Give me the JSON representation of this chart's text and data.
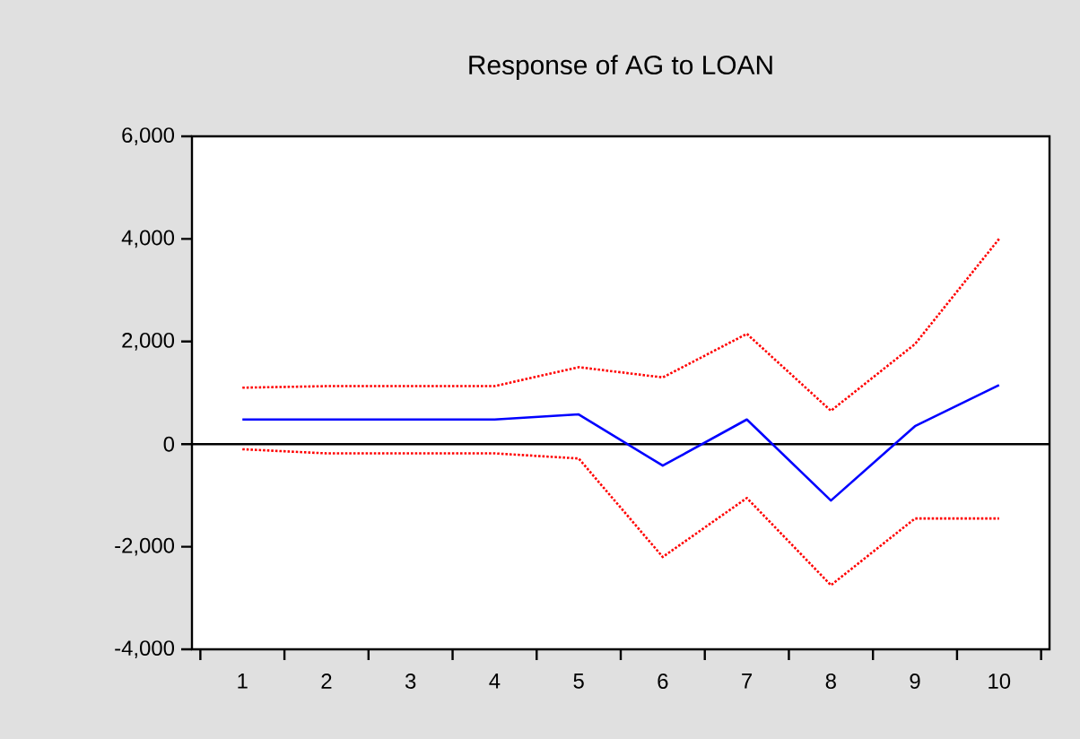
{
  "chart_data": {
    "type": "line",
    "title": "Response of AG to LOAN",
    "categories": [
      "1",
      "2",
      "3",
      "4",
      "5",
      "6",
      "7",
      "8",
      "9",
      "10"
    ],
    "series": [
      {
        "color": "#0000ff",
        "line_style": "solid",
        "values": [
          480,
          480,
          480,
          480,
          580,
          -420,
          480,
          -1100,
          350,
          1150
        ]
      },
      {
        "color": "#ff0000",
        "line_style": "dotted",
        "values": [
          1100,
          1130,
          1130,
          1130,
          1500,
          1300,
          2150,
          650,
          1950,
          4000
        ]
      },
      {
        "color": "#ff0000",
        "line_style": "dotted",
        "values": [
          -100,
          -180,
          -180,
          -180,
          -280,
          -2200,
          -1050,
          -2750,
          -1450,
          -1450
        ]
      }
    ],
    "ylim": [
      -4000,
      6000
    ],
    "yticks": [
      {
        "value": -4000,
        "label": "-4,000"
      },
      {
        "value": -2000,
        "label": "-2,000"
      },
      0,
      {
        "value": 2000,
        "label": "2,000"
      },
      {
        "value": 4000,
        "label": "4,000"
      },
      {
        "value": 6000,
        "label": "6,000"
      }
    ],
    "ref_lines": [
      {
        "axis": "y",
        "value": 0,
        "color": "#000000"
      }
    ],
    "marker": "none"
  }
}
